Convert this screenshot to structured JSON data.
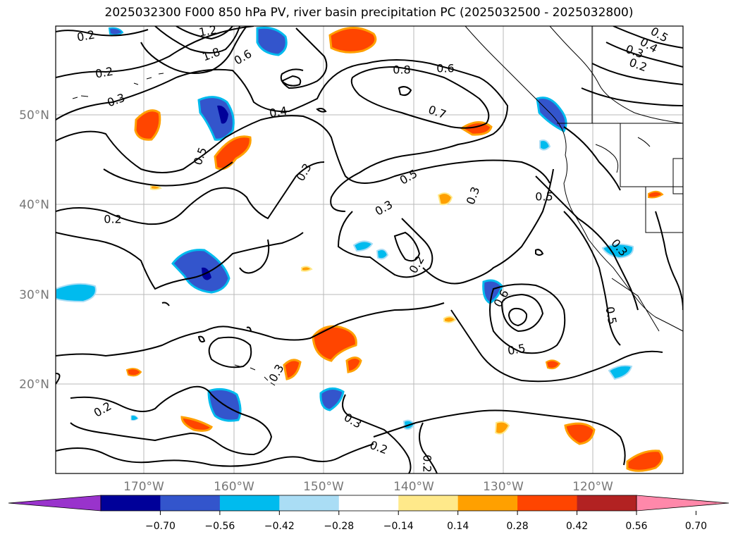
{
  "title": "2025032300 F000 850 hPa PV, river basin precipitation PC (2025032500 - 2025032800)",
  "lat_labels": [
    "50°N",
    "40°N",
    "30°N",
    "20°N"
  ],
  "lon_labels": [
    "170°W",
    "160°W",
    "150°W",
    "140°W",
    "130°W",
    "120°W"
  ],
  "colorbar": {
    "ticks": [
      "−0.70",
      "−0.56",
      "−0.42",
      "−0.28",
      "−0.14",
      "0.14",
      "0.28",
      "0.42",
      "0.56",
      "0.70"
    ],
    "colors": [
      "#9933cc",
      "#000099",
      "#3355cc",
      "#00bbee",
      "#aaddf5",
      "#ffffff",
      "#ffe98a",
      "#ffa000",
      "#ff4500",
      "#b22222",
      "#ff88aa"
    ]
  },
  "contour_labels": [
    "0.2",
    "1.2",
    "1.8",
    "0.6",
    "0.2",
    "0.3",
    "0.4",
    "0.5",
    "0.8",
    "0.6",
    "0.7",
    "0.5",
    "0.3",
    "0.3",
    "0.2",
    "0.5",
    "0.2",
    "0.3",
    "0.3",
    "0.6",
    "0.5",
    "0.5",
    "0.2",
    "0.3",
    "0.2",
    "0.2",
    "0.5",
    "0.4",
    "0.3",
    "0.2",
    "0.3"
  ]
}
